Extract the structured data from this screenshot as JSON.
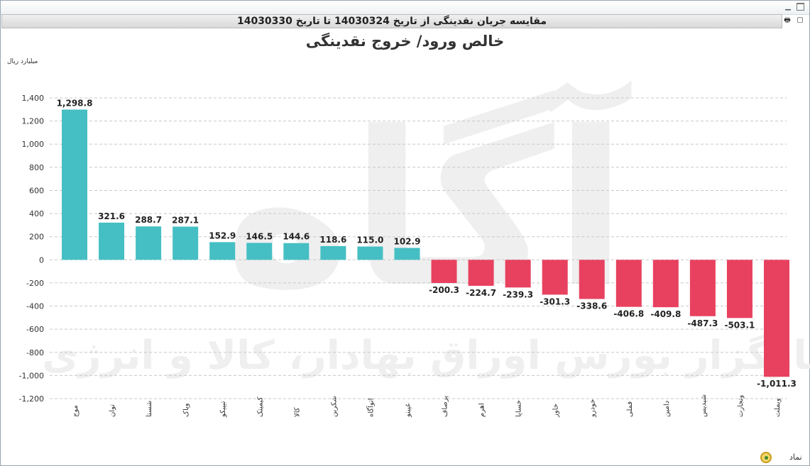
{
  "window": {
    "header_title": "مقایسه جریان نقدینگی از تاریخ 14030324 تا تاریخ 14030330"
  },
  "watermark": {
    "logo_text": "آگاه",
    "tagline": "کارگزار بورس اوراق بهادار، کالا و انرژی"
  },
  "legend": {
    "label": "نماد"
  },
  "colors": {
    "positive": "#45bfc3",
    "negative": "#e8415f",
    "grid": "#c8c8c8",
    "watermark": "#efefef"
  },
  "chart_data": {
    "type": "bar",
    "title": "خالص ورود/ خروج نقدینگی",
    "ylabel": "میلیارد ریال",
    "xlabel": "",
    "ylim": [
      -1200,
      1400
    ],
    "yticks": [
      1400,
      1200,
      1000,
      800,
      600,
      400,
      200,
      0,
      -200,
      -400,
      -600,
      -800,
      -1000,
      -1200
    ],
    "ytick_labels": [
      "1,400",
      "1,200",
      "1,000",
      "800",
      "600",
      "400",
      "200",
      "0",
      "-200",
      "-400",
      "-600",
      "-800",
      "-1,000",
      "-1,200"
    ],
    "grid": true,
    "categories": [
      "موج",
      "توان",
      "شستا",
      "وپاک",
      "تیپیکو",
      "کیمیتک",
      "کالا",
      "شکربن",
      "اتوآگاه",
      "غپینو",
      "پرصاف",
      "اهرم",
      "خساپا",
      "خاور",
      "خودرو",
      "فملی",
      "دامین",
      "شپدیس",
      "وتجارت",
      "وبملت"
    ],
    "values": [
      1298.8,
      321.6,
      288.7,
      287.1,
      152.9,
      146.5,
      144.6,
      118.6,
      115.0,
      102.9,
      -200.3,
      -224.7,
      -239.3,
      -301.3,
      -338.6,
      -406.8,
      -409.8,
      -487.3,
      -503.1,
      -1011.3
    ],
    "value_labels": [
      "1,298.8",
      "321.6",
      "288.7",
      "287.1",
      "152.9",
      "146.5",
      "144.6",
      "118.6",
      "115.0",
      "102.9",
      "-200.3",
      "-224.7",
      "-239.3",
      "-301.3",
      "-338.6",
      "-406.8",
      "-409.8",
      "-487.3",
      "-503.1",
      "-1,011.3"
    ]
  }
}
